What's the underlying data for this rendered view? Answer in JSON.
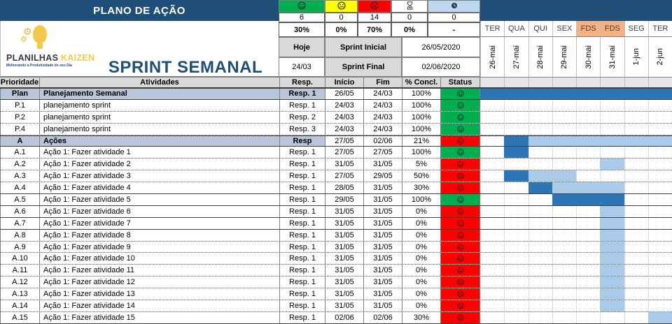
{
  "header": {
    "plano_title": "PLANO DE AÇÃO",
    "sprint_title": "SPRINT SEMANAL",
    "logo": {
      "brand_primary": "PLANILHAS",
      "brand_accent": "KAIZEN",
      "tagline": "Melhorando a Produtividade do seu Dia"
    },
    "summary": {
      "statuses": [
        {
          "name": "concluido",
          "icon": "smile-icon",
          "color": "#00B050",
          "count": "6",
          "percent": "30%"
        },
        {
          "name": "em-andamento",
          "icon": "neutral-icon",
          "color": "#FFFF00",
          "count": "0",
          "percent": "0%"
        },
        {
          "name": "atrasado",
          "icon": "frown-icon",
          "color": "#FF0000",
          "count": "14",
          "percent": "70%"
        },
        {
          "name": "nao-iniciado",
          "icon": "hourglass-icon",
          "color": "#FFFFFF",
          "count": "0",
          "percent": "0%"
        },
        {
          "name": "pausado",
          "icon": "clock-icon",
          "color": "#BDD7EE",
          "count": "0",
          "percent": "-"
        }
      ],
      "hoje_label": "Hoje",
      "hoje_value": "24/03",
      "sprint_inicial_label": "Sprint Inicial",
      "sprint_inicial_value": "26/05/2020",
      "sprint_final_label": "Sprint Final",
      "sprint_final_value": "02/06/2020"
    }
  },
  "calendar": {
    "days": [
      {
        "name": "TER",
        "date": "26-mai",
        "weekend": false
      },
      {
        "name": "QUA",
        "date": "27-mai",
        "weekend": false
      },
      {
        "name": "QUI",
        "date": "28-mai",
        "weekend": false
      },
      {
        "name": "SEX",
        "date": "29-mai",
        "weekend": false
      },
      {
        "name": "FDS",
        "date": "30-mai",
        "weekend": true
      },
      {
        "name": "FDS",
        "date": "31-mai",
        "weekend": true
      },
      {
        "name": "SEG",
        "date": "1-jun",
        "weekend": false
      },
      {
        "name": "TER",
        "date": "2-jun",
        "weekend": false
      }
    ]
  },
  "table": {
    "columns": [
      "Prioridade",
      "Atividades",
      "Resp.",
      "Início",
      "Fim",
      "% Concl.",
      "Status"
    ],
    "rows": [
      {
        "priority": "Plan",
        "activity": "Planejamento Semanal",
        "resp": "Resp. 1",
        "start": "26/05",
        "end": "24/03",
        "pct": "100%",
        "status": "green",
        "section": true,
        "solid_bottom": false,
        "bars": [
          {
            "type": "dark",
            "from": 0,
            "to": 7
          }
        ]
      },
      {
        "priority": "P.1",
        "activity": "planejamento sprint",
        "resp": "Resp. 1",
        "start": "24/03",
        "end": "24/03",
        "pct": "100%",
        "status": "green",
        "section": false,
        "solid_bottom": false,
        "bars": []
      },
      {
        "priority": "P.2",
        "activity": "planejamento sprint",
        "resp": "Resp. 2",
        "start": "24/03",
        "end": "24/03",
        "pct": "100%",
        "status": "green",
        "section": false,
        "solid_bottom": false,
        "bars": []
      },
      {
        "priority": "P.4",
        "activity": "planejamento sprint",
        "resp": "Resp. 3",
        "start": "24/03",
        "end": "24/03",
        "pct": "100%",
        "status": "green",
        "section": false,
        "solid_bottom": false,
        "bars": []
      },
      {
        "priority": "A",
        "activity": "Ações",
        "resp": "Resp",
        "start": "27/05",
        "end": "02/06",
        "pct": "21%",
        "status": "red",
        "section": true,
        "solid_bottom": false,
        "bars": [
          {
            "type": "dark",
            "from": 1,
            "to": 1
          },
          {
            "type": "light",
            "from": 2,
            "to": 7
          }
        ]
      },
      {
        "priority": "A.1",
        "activity": "Ação 1: Fazer atividade 1",
        "resp": "Resp. 1",
        "start": "27/05",
        "end": "27/05",
        "pct": "100%",
        "status": "green",
        "section": false,
        "solid_bottom": false,
        "bars": [
          {
            "type": "dark",
            "from": 1,
            "to": 1
          }
        ]
      },
      {
        "priority": "A.2",
        "activity": "Ação 1: Fazer atividade 2",
        "resp": "Resp. 1",
        "start": "31/05",
        "end": "31/05",
        "pct": "5%",
        "status": "red",
        "section": false,
        "solid_bottom": false,
        "bars": [
          {
            "type": "light",
            "from": 5,
            "to": 5
          }
        ]
      },
      {
        "priority": "A.3",
        "activity": "Ação 1: Fazer atividade 3",
        "resp": "Resp. 1",
        "start": "27/05",
        "end": "29/05",
        "pct": "50%",
        "status": "red",
        "section": false,
        "solid_bottom": false,
        "bars": [
          {
            "type": "dark",
            "from": 1,
            "to": 1
          },
          {
            "type": "light",
            "from": 2,
            "to": 3
          }
        ]
      },
      {
        "priority": "A.4",
        "activity": "Ação 1: Fazer atividade 4",
        "resp": "Resp. 1",
        "start": "28/05",
        "end": "31/05",
        "pct": "30%",
        "status": "red",
        "section": false,
        "solid_bottom": true,
        "bars": [
          {
            "type": "dark",
            "from": 2,
            "to": 2
          },
          {
            "type": "light",
            "from": 3,
            "to": 5
          }
        ]
      },
      {
        "priority": "A.5",
        "activity": "Ação 1: Fazer atividade 5",
        "resp": "Resp. 1",
        "start": "29/05",
        "end": "31/05",
        "pct": "100%",
        "status": "green",
        "section": false,
        "solid_bottom": true,
        "bars": [
          {
            "type": "dark",
            "from": 3,
            "to": 5
          }
        ]
      },
      {
        "priority": "A.6",
        "activity": "Ação 1: Fazer atividade 6",
        "resp": "Resp. 1",
        "start": "31/05",
        "end": "31/05",
        "pct": "0%",
        "status": "red",
        "section": false,
        "solid_bottom": true,
        "bars": [
          {
            "type": "light",
            "from": 5,
            "to": 5
          }
        ]
      },
      {
        "priority": "A.7",
        "activity": "Ação 1: Fazer atividade 7",
        "resp": "Resp. 1",
        "start": "31/05",
        "end": "31/05",
        "pct": "0%",
        "status": "red",
        "section": false,
        "solid_bottom": true,
        "bars": [
          {
            "type": "light",
            "from": 5,
            "to": 5
          }
        ]
      },
      {
        "priority": "A.8",
        "activity": "Ação 1: Fazer atividade 8",
        "resp": "Resp. 1",
        "start": "31/05",
        "end": "31/05",
        "pct": "0%",
        "status": "red",
        "section": false,
        "solid_bottom": false,
        "bars": [
          {
            "type": "light",
            "from": 5,
            "to": 5
          }
        ]
      },
      {
        "priority": "A.9",
        "activity": "Ação 1: Fazer atividade 9",
        "resp": "Resp. 1",
        "start": "31/05",
        "end": "31/05",
        "pct": "0%",
        "status": "red",
        "section": false,
        "solid_bottom": false,
        "bars": [
          {
            "type": "light",
            "from": 5,
            "to": 5
          }
        ]
      },
      {
        "priority": "A.10",
        "activity": "Ação 1: Fazer atividade 10",
        "resp": "Resp. 1",
        "start": "31/05",
        "end": "31/05",
        "pct": "0%",
        "status": "red",
        "section": false,
        "solid_bottom": false,
        "bars": [
          {
            "type": "light",
            "from": 5,
            "to": 5
          }
        ]
      },
      {
        "priority": "A.11",
        "activity": "Ação 1: Fazer atividade 11",
        "resp": "Resp. 1",
        "start": "31/05",
        "end": "31/05",
        "pct": "0%",
        "status": "red",
        "section": false,
        "solid_bottom": false,
        "bars": [
          {
            "type": "light",
            "from": 5,
            "to": 5
          }
        ]
      },
      {
        "priority": "A.12",
        "activity": "Ação 1: Fazer atividade 12",
        "resp": "Resp. 1",
        "start": "31/05",
        "end": "31/05",
        "pct": "0%",
        "status": "red",
        "section": false,
        "solid_bottom": false,
        "bars": [
          {
            "type": "light",
            "from": 5,
            "to": 5
          }
        ]
      },
      {
        "priority": "A.13",
        "activity": "Ação 1: Fazer atividade 13",
        "resp": "Resp. 1",
        "start": "31/05",
        "end": "31/05",
        "pct": "0%",
        "status": "red",
        "section": false,
        "solid_bottom": false,
        "bars": [
          {
            "type": "light",
            "from": 5,
            "to": 5
          }
        ]
      },
      {
        "priority": "A.14",
        "activity": "Ação 1: Fazer atividade 14",
        "resp": "Resp. 1",
        "start": "31/05",
        "end": "31/05",
        "pct": "0%",
        "status": "red",
        "section": false,
        "solid_bottom": false,
        "bars": [
          {
            "type": "light",
            "from": 5,
            "to": 5
          }
        ]
      },
      {
        "priority": "A.15",
        "activity": "Ação 1: Fazer atividade 15",
        "resp": "Resp. 1",
        "start": "02/06",
        "end": "02/06",
        "pct": "30%",
        "status": "red",
        "section": false,
        "solid_bottom": true,
        "bars": [
          {
            "type": "light",
            "from": 7,
            "to": 7
          }
        ]
      }
    ]
  },
  "colors": {
    "navy": "#1F4E79",
    "green": "#00B050",
    "yellow": "#FFFF00",
    "red": "#FF0000",
    "light_blue": "#BDD7EE",
    "weekend": "#F4B183",
    "bar_dark": "#2E75B6",
    "bar_light": "#A9CBE9",
    "section_bg": "#B9C5D9",
    "header_bg": "#D9D9D9"
  }
}
